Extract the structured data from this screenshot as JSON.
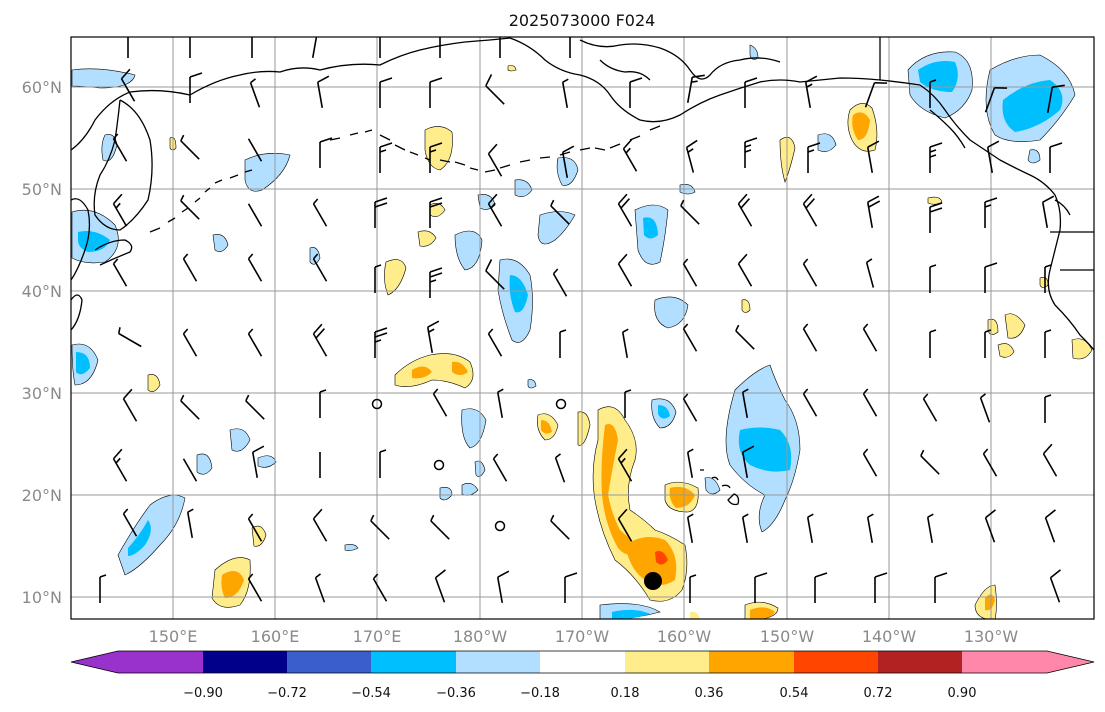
{
  "title": "2025073000 F024",
  "lat_labels": [
    "60°N",
    "50°N",
    "40°N",
    "30°N",
    "20°N",
    "10°N"
  ],
  "lon_labels": [
    "150°E",
    "160°E",
    "170°E",
    "180°W",
    "170°W",
    "160°W",
    "150°W",
    "140°W",
    "130°W"
  ],
  "colorbar": {
    "labels": [
      "−0.90",
      "−0.72",
      "−0.54",
      "−0.36",
      "−0.18",
      "0.18",
      "0.36",
      "0.54",
      "0.72",
      "0.90"
    ],
    "colors": [
      "#9932cc",
      "#00008b",
      "#3a5fcd",
      "#00bfff",
      "#b2dfff",
      "#ffffff",
      "#ffec8b",
      "#ffa500",
      "#ff4500",
      "#b22222",
      "#ff88aa"
    ]
  },
  "fill_colors": {
    "light_blue": "#b2dfff",
    "blue": "#00bfff",
    "light_yellow": "#ffec8b",
    "orange": "#ffa500",
    "red": "#ff4500"
  },
  "marker": {
    "label": "storm-center",
    "lon_w": 163,
    "lat_n": 12
  }
}
